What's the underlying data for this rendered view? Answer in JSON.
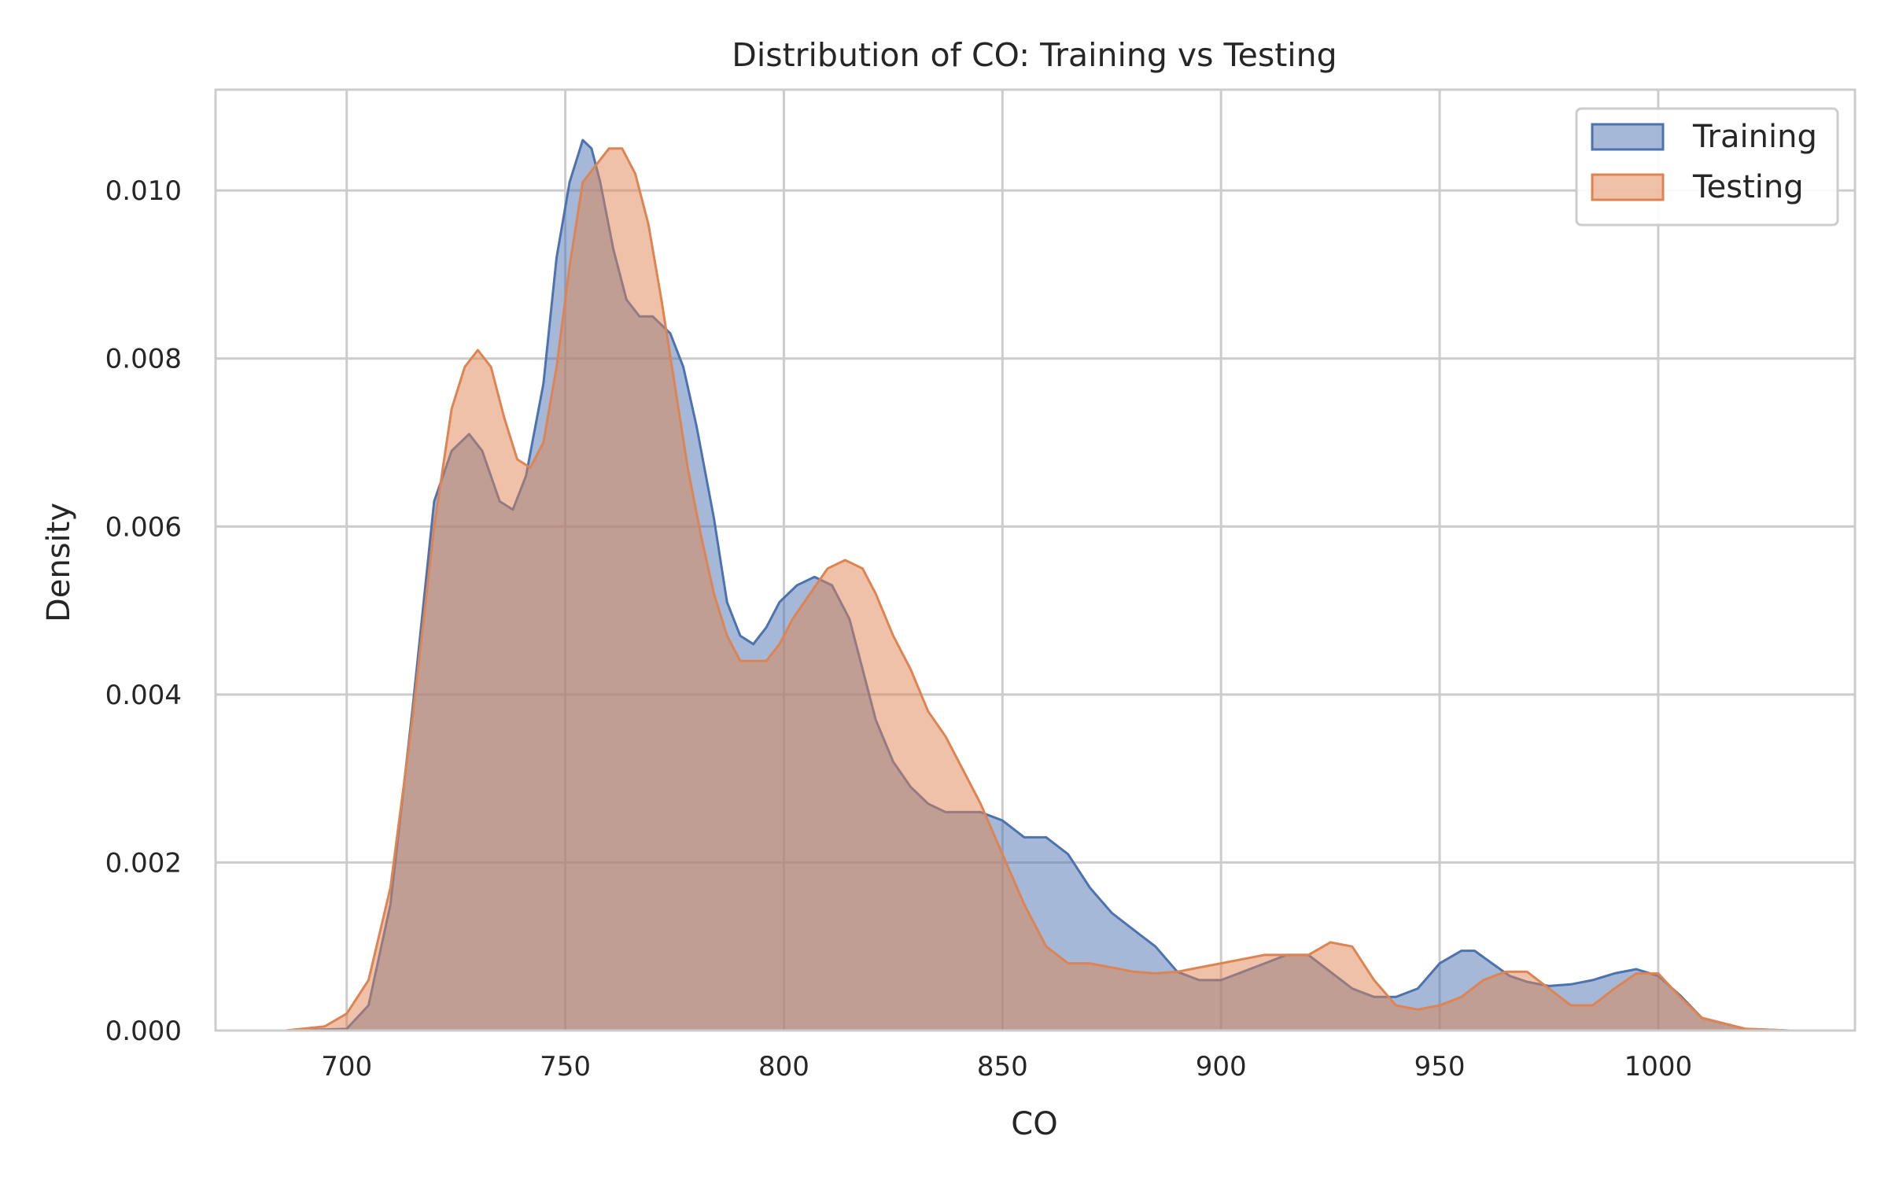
{
  "chart_data": {
    "type": "area",
    "title": "Distribution of CO: Training vs Testing",
    "xlabel": "CO",
    "ylabel": "Density",
    "xlim": [
      670,
      1045
    ],
    "ylim": [
      0,
      0.0112
    ],
    "xticks": [
      700,
      750,
      800,
      850,
      900,
      950,
      1000
    ],
    "xtick_labels": [
      "700",
      "750",
      "800",
      "850",
      "900",
      "950",
      "1000"
    ],
    "yticks": [
      0,
      0.002,
      0.004,
      0.006,
      0.008,
      0.01
    ],
    "ytick_labels": [
      "0.000",
      "0.002",
      "0.004",
      "0.006",
      "0.008",
      "0.010"
    ],
    "grid": true,
    "legend_position": "top-right",
    "series": [
      {
        "name": "Training",
        "color": "#4c72b0",
        "x": [
          686,
          700,
          705,
          710,
          715,
          720,
          724,
          728,
          731,
          735,
          738,
          741,
          745,
          748,
          751,
          754,
          756,
          758,
          761,
          764,
          767,
          770,
          774,
          777,
          780,
          784,
          787,
          790,
          793,
          796,
          799,
          803,
          807,
          811,
          815,
          818,
          821,
          825,
          829,
          833,
          837,
          841,
          845,
          850,
          855,
          860,
          865,
          870,
          875,
          880,
          885,
          890,
          895,
          900,
          905,
          910,
          915,
          920,
          925,
          930,
          935,
          940,
          945,
          950,
          955,
          958,
          962,
          966,
          970,
          975,
          980,
          985,
          990,
          995,
          1000,
          1005,
          1010,
          1020,
          1030
        ],
        "y": [
          0.0,
          2e-05,
          0.0003,
          0.0015,
          0.0038,
          0.0063,
          0.0069,
          0.0071,
          0.0069,
          0.0063,
          0.0062,
          0.0066,
          0.0077,
          0.0092,
          0.0101,
          0.0106,
          0.0105,
          0.0101,
          0.0093,
          0.0087,
          0.0085,
          0.0085,
          0.0083,
          0.0079,
          0.0072,
          0.0061,
          0.0051,
          0.0047,
          0.0046,
          0.0048,
          0.0051,
          0.0053,
          0.0054,
          0.0053,
          0.0049,
          0.0043,
          0.0037,
          0.0032,
          0.0029,
          0.0027,
          0.0026,
          0.0026,
          0.0026,
          0.0025,
          0.0023,
          0.0023,
          0.0021,
          0.0017,
          0.0014,
          0.0012,
          0.001,
          0.0007,
          0.0006,
          0.0006,
          0.0007,
          0.0008,
          0.0009,
          0.0009,
          0.0007,
          0.0005,
          0.0004,
          0.0004,
          0.0005,
          0.0008,
          0.00095,
          0.00095,
          0.0008,
          0.00065,
          0.00058,
          0.00053,
          0.00055,
          0.0006,
          0.00068,
          0.00073,
          0.00065,
          0.00042,
          0.00015,
          2e-05,
          0.0
        ]
      },
      {
        "name": "Testing",
        "color": "#dd8452",
        "x": [
          686,
          695,
          700,
          705,
          710,
          715,
          720,
          724,
          727,
          730,
          733,
          736,
          739,
          742,
          745,
          748,
          751,
          754,
          757,
          760,
          763,
          766,
          769,
          772,
          775,
          778,
          781,
          784,
          787,
          790,
          793,
          796,
          799,
          802,
          806,
          810,
          814,
          818,
          821,
          825,
          829,
          833,
          837,
          841,
          845,
          850,
          855,
          860,
          865,
          870,
          875,
          880,
          885,
          890,
          895,
          900,
          905,
          910,
          915,
          920,
          925,
          930,
          935,
          940,
          945,
          950,
          955,
          960,
          965,
          970,
          975,
          980,
          985,
          990,
          995,
          1000,
          1005,
          1010,
          1020,
          1030
        ],
        "y": [
          0.0,
          5e-05,
          0.0002,
          0.0006,
          0.0017,
          0.0037,
          0.006,
          0.0074,
          0.0079,
          0.0081,
          0.0079,
          0.0073,
          0.0068,
          0.0067,
          0.007,
          0.0079,
          0.0091,
          0.0101,
          0.0103,
          0.0105,
          0.0105,
          0.0102,
          0.0096,
          0.0087,
          0.0077,
          0.0067,
          0.0059,
          0.0052,
          0.0047,
          0.0044,
          0.0044,
          0.0044,
          0.0046,
          0.0049,
          0.0052,
          0.0055,
          0.0056,
          0.0055,
          0.0052,
          0.0047,
          0.0043,
          0.0038,
          0.0035,
          0.0031,
          0.0027,
          0.0021,
          0.0015,
          0.001,
          0.0008,
          0.0008,
          0.00075,
          0.0007,
          0.00068,
          0.0007,
          0.00075,
          0.0008,
          0.00085,
          0.0009,
          0.0009,
          0.0009,
          0.00105,
          0.001,
          0.0006,
          0.0003,
          0.00025,
          0.0003,
          0.0004,
          0.0006,
          0.0007,
          0.0007,
          0.0005,
          0.0003,
          0.0003,
          0.0005,
          0.00068,
          0.00068,
          0.0004,
          0.00015,
          2e-05,
          0.0
        ]
      }
    ]
  }
}
